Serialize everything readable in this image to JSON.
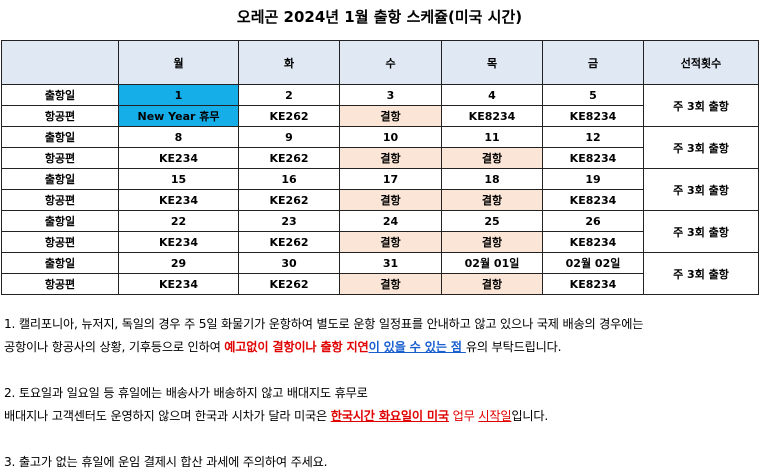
{
  "title": "오레곤 2024년 1월 출항 스케쥴(미국 시간)",
  "headers": [
    "",
    "월",
    "화",
    "수",
    "목",
    "금",
    "선적횟수"
  ],
  "row_labels": {
    "date": "출항일",
    "flight": "항공편"
  },
  "weeks": [
    {
      "dates": [
        "1",
        "2",
        "3",
        "4",
        "5"
      ],
      "flights": [
        "New Year 휴무",
        "KE262",
        "결항",
        "KE8234",
        "KE8234"
      ],
      "weekly": "주 3회 출항"
    },
    {
      "dates": [
        "8",
        "9",
        "10",
        "11",
        "12"
      ],
      "flights": [
        "KE234",
        "KE262",
        "결항",
        "결항",
        "KE8234"
      ],
      "weekly": "주 3회 출항"
    },
    {
      "dates": [
        "15",
        "16",
        "17",
        "18",
        "19"
      ],
      "flights": [
        "KE234",
        "KE262",
        "결항",
        "결항",
        "KE8234"
      ],
      "weekly": "주 3회 출항"
    },
    {
      "dates": [
        "22",
        "23",
        "24",
        "25",
        "26"
      ],
      "flights": [
        "KE234",
        "KE262",
        "결항",
        "결항",
        "KE8234"
      ],
      "weekly": "주 3회 출항"
    },
    {
      "dates": [
        "29",
        "30",
        "31",
        "02월 01일",
        "02월 02일"
      ],
      "flights": [
        "KE234",
        "KE262",
        "결항",
        "결항",
        "KE8234"
      ],
      "weekly": "주 3회 출항"
    }
  ],
  "notes": {
    "n1_line1": "1. 캘리포니아, 뉴저지, 독일의 경우 주 5일 화물기가 운항하여 별도로 운항 일정표를 안내하고 않고 있으나 국제 배송의 경우에는",
    "n1_line2_a": "공항이나 항공사의 상황, 기후등으로 인하여 ",
    "n1_line2_red": "예고없이 결항이나 출항 지연",
    "n1_line2_blue": "이 있을 수 있는 점 ",
    "n1_line2_end": "유의 부탁드립니다.",
    "n2_line1": "2. 토요일과 일요일 등 휴일에는 배송사가 배송하지 않고 배대지도 휴무로",
    "n2_line2_a": "배대지나 고객센터도 운영하지 않으며 한국과 시차가 달라 미국은 ",
    "n2_line2_red": "한국시간 화요일이 미국",
    "n2_line2_sp": " 업무 ",
    "n2_line2_red2": "시작일",
    "n2_line2_end": "입니다.",
    "n3": "3. 출고가 없는 휴일에 운임 결제시 합산 과세에 주의하여 주세요."
  },
  "colors": {
    "header_bg": "#dfe8f3",
    "holiday_bg": "#16aee8",
    "cancel_bg": "#fbe5d6",
    "red": "#e00000",
    "blue": "#1a5fd0"
  }
}
